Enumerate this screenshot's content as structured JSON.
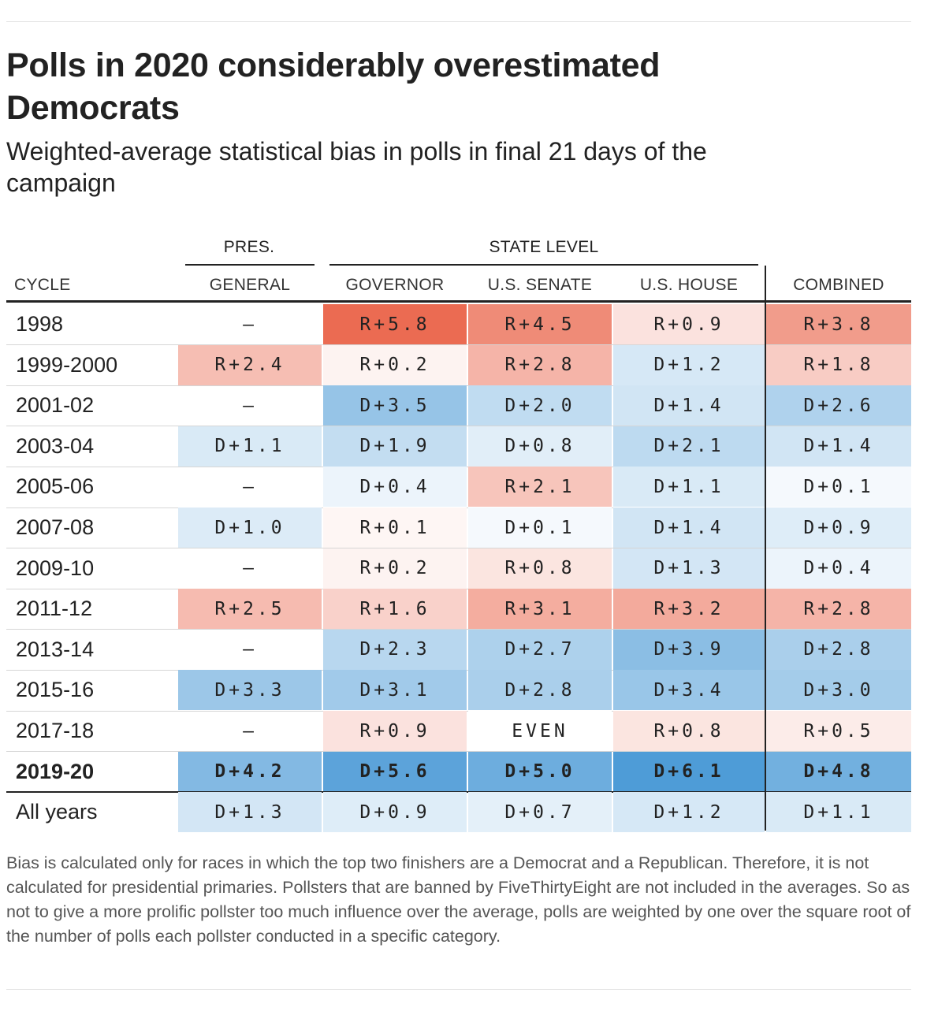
{
  "title": "Polls in 2020 considerably overestimated Democrats",
  "subtitle": "Weighted-average statistical bias in polls in final 21 days of the campaign",
  "headers": {
    "group_pres": "PRES.",
    "group_state": "STATE LEVEL",
    "cycle": "CYCLE",
    "general": "GENERAL",
    "governor": "GOVERNOR",
    "senate": "U.S. SENATE",
    "house": "U.S. HOUSE",
    "combined": "COMBINED"
  },
  "footnote": "Bias is calculated only for races in which the top two finishers are a Democrat and a Republican. Therefore, it is not calculated for presidential primaries. Pollsters that are banned by FiveThirtyEight are not included in the averages. So as not to give a more prolific pollster too much influence over the average, polls are weighted by one over the square root of the number of polls each pollster conducted in a specific category.",
  "colors": {
    "republican": "#e8563a",
    "democrat": "#3f93d3",
    "text": "#222222"
  },
  "chart_data": {
    "type": "table",
    "columns": [
      "CYCLE",
      "GENERAL",
      "GOVERNOR",
      "U.S. SENATE",
      "U.S. HOUSE",
      "COMBINED"
    ],
    "rows": [
      {
        "cycle": "1998",
        "cells": [
          "–",
          "R+5.8",
          "R+4.5",
          "R+0.9",
          "R+3.8"
        ],
        "values": [
          null,
          5.8,
          4.5,
          0.9,
          3.8
        ]
      },
      {
        "cycle": "1999-2000",
        "cells": [
          "R+2.4",
          "R+0.2",
          "R+2.8",
          "D+1.2",
          "R+1.8"
        ],
        "values": [
          2.4,
          0.2,
          2.8,
          -1.2,
          1.8
        ]
      },
      {
        "cycle": "2001-02",
        "cells": [
          "–",
          "D+3.5",
          "D+2.0",
          "D+1.4",
          "D+2.6"
        ],
        "values": [
          null,
          -3.5,
          -2.0,
          -1.4,
          -2.6
        ]
      },
      {
        "cycle": "2003-04",
        "cells": [
          "D+1.1",
          "D+1.9",
          "D+0.8",
          "D+2.1",
          "D+1.4"
        ],
        "values": [
          -1.1,
          -1.9,
          -0.8,
          -2.1,
          -1.4
        ]
      },
      {
        "cycle": "2005-06",
        "cells": [
          "–",
          "D+0.4",
          "R+2.1",
          "D+1.1",
          "D+0.1"
        ],
        "values": [
          null,
          -0.4,
          2.1,
          -1.1,
          -0.1
        ]
      },
      {
        "cycle": "2007-08",
        "cells": [
          "D+1.0",
          "R+0.1",
          "D+0.1",
          "D+1.4",
          "D+0.9"
        ],
        "values": [
          -1.0,
          0.1,
          -0.1,
          -1.4,
          -0.9
        ]
      },
      {
        "cycle": "2009-10",
        "cells": [
          "–",
          "R+0.2",
          "R+0.8",
          "D+1.3",
          "D+0.4"
        ],
        "values": [
          null,
          0.2,
          0.8,
          -1.3,
          -0.4
        ]
      },
      {
        "cycle": "2011-12",
        "cells": [
          "R+2.5",
          "R+1.6",
          "R+3.1",
          "R+3.2",
          "R+2.8"
        ],
        "values": [
          2.5,
          1.6,
          3.1,
          3.2,
          2.8
        ]
      },
      {
        "cycle": "2013-14",
        "cells": [
          "–",
          "D+2.3",
          "D+2.7",
          "D+3.9",
          "D+2.8"
        ],
        "values": [
          null,
          -2.3,
          -2.7,
          -3.9,
          -2.8
        ]
      },
      {
        "cycle": "2015-16",
        "cells": [
          "D+3.3",
          "D+3.1",
          "D+2.8",
          "D+3.4",
          "D+3.0"
        ],
        "values": [
          -3.3,
          -3.1,
          -2.8,
          -3.4,
          -3.0
        ]
      },
      {
        "cycle": "2017-18",
        "cells": [
          "–",
          "R+0.9",
          "EVEN",
          "R+0.8",
          "R+0.5"
        ],
        "values": [
          null,
          0.9,
          0.0,
          0.8,
          0.5
        ]
      },
      {
        "cycle": "2019-20",
        "cells": [
          "D+4.2",
          "D+5.6",
          "D+5.0",
          "D+6.1",
          "D+4.8"
        ],
        "values": [
          -4.2,
          -5.6,
          -5.0,
          -6.1,
          -4.8
        ],
        "bold": true
      },
      {
        "cycle": "All years",
        "cells": [
          "D+1.3",
          "D+0.9",
          "D+0.7",
          "D+1.2",
          "D+1.1"
        ],
        "values": [
          -1.3,
          -0.9,
          -0.7,
          -1.2,
          -1.1
        ]
      }
    ]
  }
}
